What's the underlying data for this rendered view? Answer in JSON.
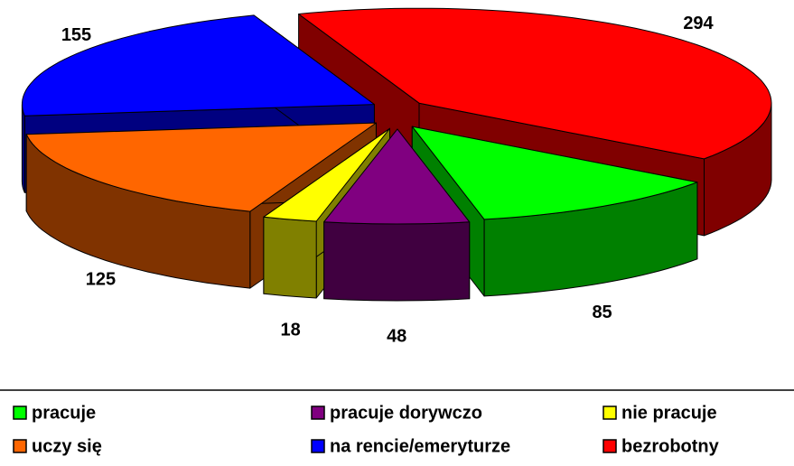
{
  "chart_data": {
    "type": "pie3d",
    "categories": [
      "pracuje",
      "pracuje dorywczo",
      "nie pracuje",
      "uczy się",
      "na rencie/emeryturze",
      "bezrobotny"
    ],
    "values": [
      85,
      48,
      18,
      125,
      155,
      294
    ],
    "colors": [
      "#00ff00",
      "#800080",
      "#ffff00",
      "#ff6600",
      "#0000ff",
      "#ff0000"
    ],
    "legend": "bottom"
  }
}
